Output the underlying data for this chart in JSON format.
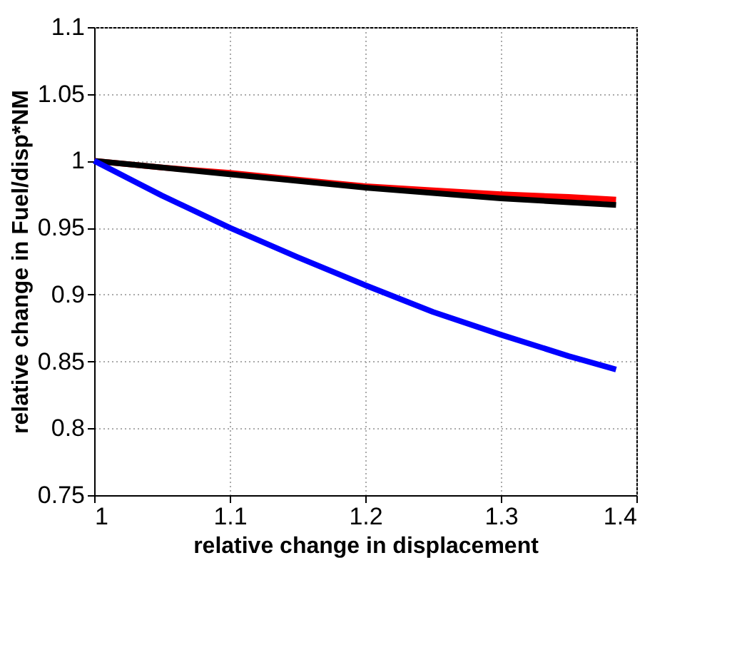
{
  "chart_data": {
    "type": "line",
    "xlabel": "relative change in displacement",
    "ylabel": "relative change in Fuel/disp*NM",
    "xlim": [
      1,
      1.4
    ],
    "xticks": [
      1,
      1.1,
      1.2,
      1.3,
      1.4
    ],
    "ylim": [
      0.75,
      1.1
    ],
    "yticks": [
      0.75,
      0.8,
      0.85,
      0.9,
      0.95,
      1,
      1.05,
      1.1
    ],
    "grid": true,
    "marker": "none",
    "line_style": "solid",
    "series": [
      {
        "color": "#ff0000",
        "x": [
          1,
          1.05,
          1.1,
          1.15,
          1.2,
          1.25,
          1.3,
          1.35,
          1.385
        ],
        "values": [
          1,
          0.995,
          0.991,
          0.986,
          0.981,
          0.978,
          0.975,
          0.973,
          0.971
        ]
      },
      {
        "color": "#000000",
        "x": [
          1,
          1.05,
          1.1,
          1.15,
          1.2,
          1.25,
          1.3,
          1.35,
          1.385
        ],
        "values": [
          1,
          0.995,
          0.99,
          0.985,
          0.98,
          0.976,
          0.972,
          0.969,
          0.967
        ]
      },
      {
        "color": "#0000ff",
        "x": [
          1,
          1.05,
          1.1,
          1.15,
          1.2,
          1.25,
          1.3,
          1.35,
          1.385
        ],
        "values": [
          1,
          0.974,
          0.95,
          0.928,
          0.907,
          0.887,
          0.87,
          0.854,
          0.844
        ]
      }
    ]
  }
}
